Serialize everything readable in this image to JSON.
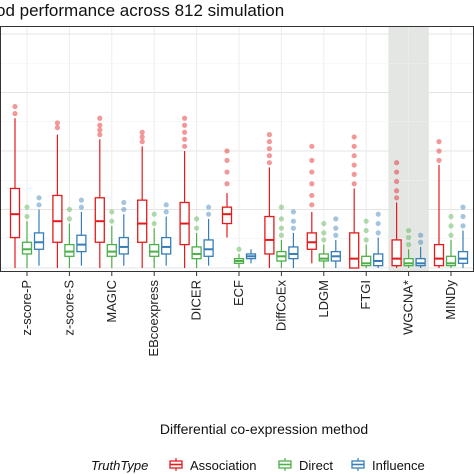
{
  "chart_data": {
    "type": "box",
    "title": "od performance across 812 simulation",
    "xlabel": "Differential co-expression method",
    "ylabel": "",
    "ylim": [
      0,
      1
    ],
    "grid": true,
    "highlighted_category": "WGCNA*",
    "categories": [
      "z-score-P",
      "z-score-S",
      "MAGIC",
      "EBcoexpress",
      "DICER",
      "ECF",
      "DiffCoEx",
      "LDGM",
      "FTGI",
      "WGCNA*",
      "MINDy"
    ],
    "legend": {
      "title": "TruthType",
      "placement": "bottom",
      "entries": [
        "Association",
        "Direct",
        "Influence"
      ]
    },
    "series": [
      {
        "name": "Association",
        "color": "#E41A1C",
        "boxes": [
          {
            "q1": 0.13,
            "median": 0.23,
            "q3": 0.34,
            "whisker_low": 0.0,
            "whisker_high": 0.64,
            "outliers": [
              0.66,
              0.69
            ]
          },
          {
            "q1": 0.11,
            "median": 0.2,
            "q3": 0.31,
            "whisker_low": 0.0,
            "whisker_high": 0.57,
            "outliers": [
              0.6,
              0.62
            ]
          },
          {
            "q1": 0.11,
            "median": 0.2,
            "q3": 0.3,
            "whisker_low": 0.0,
            "whisker_high": 0.55,
            "outliers": [
              0.57,
              0.59,
              0.61,
              0.64
            ]
          },
          {
            "q1": 0.11,
            "median": 0.19,
            "q3": 0.29,
            "whisker_low": 0.0,
            "whisker_high": 0.52,
            "outliers": [
              0.54,
              0.56,
              0.58
            ]
          },
          {
            "q1": 0.1,
            "median": 0.19,
            "q3": 0.28,
            "whisker_low": 0.0,
            "whisker_high": 0.5,
            "outliers": [
              0.52,
              0.55,
              0.58,
              0.61,
              0.64
            ]
          },
          {
            "q1": 0.19,
            "median": 0.23,
            "q3": 0.26,
            "whisker_low": 0.13,
            "whisker_high": 0.32,
            "outliers": [
              0.36,
              0.41,
              0.46,
              0.5
            ]
          },
          {
            "q1": 0.06,
            "median": 0.12,
            "q3": 0.22,
            "whisker_low": 0.0,
            "whisker_high": 0.43,
            "outliers": [
              0.45,
              0.48,
              0.51,
              0.54,
              0.57
            ]
          },
          {
            "q1": 0.08,
            "median": 0.11,
            "q3": 0.15,
            "whisker_low": 0.02,
            "whisker_high": 0.24,
            "outliers": [
              0.27,
              0.31,
              0.36,
              0.41,
              0.46,
              0.52
            ]
          },
          {
            "q1": 0.0,
            "median": 0.04,
            "q3": 0.15,
            "whisker_low": 0.0,
            "whisker_high": 0.34,
            "outliers": [
              0.36,
              0.4,
              0.44,
              0.48,
              0.52,
              0.56
            ]
          },
          {
            "q1": 0.01,
            "median": 0.04,
            "q3": 0.12,
            "whisker_low": 0.0,
            "whisker_high": 0.28,
            "outliers": [
              0.3,
              0.33,
              0.37,
              0.41,
              0.45
            ]
          },
          {
            "q1": 0.01,
            "median": 0.04,
            "q3": 0.1,
            "whisker_low": 0.0,
            "whisker_high": 0.44,
            "outliers": [
              0.46,
              0.5,
              0.54
            ]
          }
        ]
      },
      {
        "name": "Direct",
        "color": "#4DAF4A",
        "boxes": [
          {
            "q1": 0.06,
            "median": 0.08,
            "q3": 0.11,
            "whisker_low": 0.0,
            "whisker_high": 0.2,
            "outliers": [
              0.22,
              0.26
            ]
          },
          {
            "q1": 0.05,
            "median": 0.07,
            "q3": 0.1,
            "whisker_low": 0.0,
            "whisker_high": 0.19,
            "outliers": [
              0.21,
              0.25
            ]
          },
          {
            "q1": 0.05,
            "median": 0.07,
            "q3": 0.1,
            "whisker_low": 0.0,
            "whisker_high": 0.18,
            "outliers": [
              0.2,
              0.24
            ]
          },
          {
            "q1": 0.05,
            "median": 0.07,
            "q3": 0.1,
            "whisker_low": 0.0,
            "whisker_high": 0.17,
            "outliers": [
              0.19,
              0.23
            ]
          },
          {
            "q1": 0.04,
            "median": 0.06,
            "q3": 0.09,
            "whisker_low": 0.0,
            "whisker_high": 0.15,
            "outliers": [
              0.17,
              0.21
            ]
          },
          {
            "q1": 0.02,
            "median": 0.03,
            "q3": 0.04,
            "whisker_low": 0.0,
            "whisker_high": 0.06,
            "outliers": [
              0.08
            ]
          },
          {
            "q1": 0.03,
            "median": 0.05,
            "q3": 0.07,
            "whisker_low": 0.0,
            "whisker_high": 0.12,
            "outliers": [
              0.14,
              0.17,
              0.21,
              0.26
            ]
          },
          {
            "q1": 0.03,
            "median": 0.04,
            "q3": 0.06,
            "whisker_low": 0.0,
            "whisker_high": 0.1,
            "outliers": [
              0.12,
              0.15,
              0.19
            ]
          },
          {
            "q1": 0.01,
            "median": 0.02,
            "q3": 0.05,
            "whisker_low": 0.0,
            "whisker_high": 0.1,
            "outliers": [
              0.12,
              0.16,
              0.2
            ]
          },
          {
            "q1": 0.01,
            "median": 0.02,
            "q3": 0.04,
            "whisker_low": 0.0,
            "whisker_high": 0.08,
            "outliers": [
              0.1,
              0.13,
              0.16
            ]
          },
          {
            "q1": 0.01,
            "median": 0.02,
            "q3": 0.05,
            "whisker_low": 0.0,
            "whisker_high": 0.12,
            "outliers": [
              0.14,
              0.18,
              0.22
            ]
          }
        ]
      },
      {
        "name": "Influence",
        "color": "#377EB8",
        "boxes": [
          {
            "q1": 0.08,
            "median": 0.11,
            "q3": 0.15,
            "whisker_low": 0.01,
            "whisker_high": 0.25,
            "outliers": [
              0.27,
              0.3
            ]
          },
          {
            "q1": 0.07,
            "median": 0.1,
            "q3": 0.14,
            "whisker_low": 0.01,
            "whisker_high": 0.24,
            "outliers": [
              0.26,
              0.29
            ]
          },
          {
            "q1": 0.06,
            "median": 0.09,
            "q3": 0.13,
            "whisker_low": 0.01,
            "whisker_high": 0.23,
            "outliers": [
              0.25,
              0.28
            ]
          },
          {
            "q1": 0.06,
            "median": 0.09,
            "q3": 0.13,
            "whisker_low": 0.01,
            "whisker_high": 0.22,
            "outliers": [
              0.24,
              0.27
            ]
          },
          {
            "q1": 0.05,
            "median": 0.08,
            "q3": 0.12,
            "whisker_low": 0.01,
            "whisker_high": 0.21,
            "outliers": [
              0.23,
              0.26
            ]
          },
          {
            "q1": 0.04,
            "median": 0.05,
            "q3": 0.06,
            "whisker_low": 0.02,
            "whisker_high": 0.08,
            "outliers": []
          },
          {
            "q1": 0.04,
            "median": 0.06,
            "q3": 0.09,
            "whisker_low": 0.0,
            "whisker_high": 0.15,
            "outliers": [
              0.17,
              0.2,
              0.24
            ]
          },
          {
            "q1": 0.03,
            "median": 0.05,
            "q3": 0.07,
            "whisker_low": 0.0,
            "whisker_high": 0.12,
            "outliers": [
              0.14,
              0.17,
              0.21
            ]
          },
          {
            "q1": 0.01,
            "median": 0.03,
            "q3": 0.06,
            "whisker_low": 0.0,
            "whisker_high": 0.13,
            "outliers": [
              0.15,
              0.19,
              0.23
            ]
          },
          {
            "q1": 0.01,
            "median": 0.02,
            "q3": 0.04,
            "whisker_low": 0.0,
            "whisker_high": 0.09,
            "outliers": [
              0.11,
              0.14
            ]
          },
          {
            "q1": 0.02,
            "median": 0.04,
            "q3": 0.07,
            "whisker_low": 0.0,
            "whisker_high": 0.16,
            "outliers": [
              0.18,
              0.22,
              0.26
            ]
          }
        ]
      }
    ]
  }
}
